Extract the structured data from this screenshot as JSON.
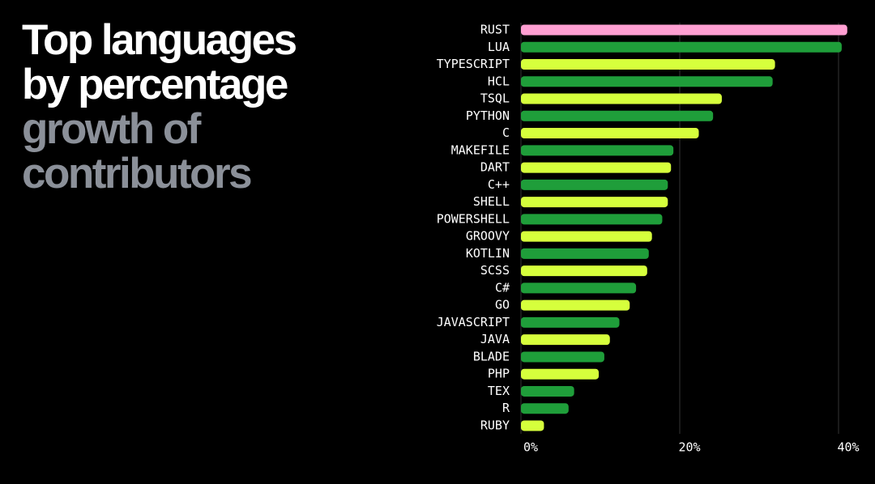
{
  "chart_data": {
    "type": "bar",
    "orientation": "horizontal",
    "title": "Top languages by percentage",
    "subtitle": "growth of contributors",
    "categories": [
      "RUST",
      "LUA",
      "TYPESCRIPT",
      "HCL",
      "TSQL",
      "PYTHON",
      "C",
      "MAKEFILE",
      "DART",
      "C++",
      "SHELL",
      "POWERSHELL",
      "GROOVY",
      "KOTLIN",
      "SCSS",
      "C#",
      "GO",
      "JAVASCRIPT",
      "JAVA",
      "BLADE",
      "PHP",
      "TEX",
      "R",
      "RUBY"
    ],
    "values": [
      41.1,
      40.4,
      32.0,
      31.7,
      25.3,
      24.2,
      22.4,
      19.2,
      18.9,
      18.5,
      18.5,
      17.8,
      16.5,
      16.1,
      15.9,
      14.5,
      13.7,
      12.4,
      11.2,
      10.5,
      9.8,
      6.7,
      6.0,
      2.9
    ],
    "colors": [
      "#ff9fd2",
      "#1f9e3a",
      "#d6ff3c",
      "#1f9e3a",
      "#d6ff3c",
      "#1f9e3a",
      "#d6ff3c",
      "#1f9e3a",
      "#d6ff3c",
      "#1f9e3a",
      "#d6ff3c",
      "#1f9e3a",
      "#d6ff3c",
      "#1f9e3a",
      "#d6ff3c",
      "#1f9e3a",
      "#d6ff3c",
      "#1f9e3a",
      "#d6ff3c",
      "#1f9e3a",
      "#d6ff3c",
      "#1f9e3a",
      "#1f9e3a",
      "#d6ff3c"
    ],
    "xlim": [
      0,
      42
    ],
    "xticks": [
      {
        "value": 0,
        "label": "0%"
      },
      {
        "value": 20,
        "label": "20%"
      },
      {
        "value": 40,
        "label": "40%"
      }
    ],
    "grid": true
  }
}
